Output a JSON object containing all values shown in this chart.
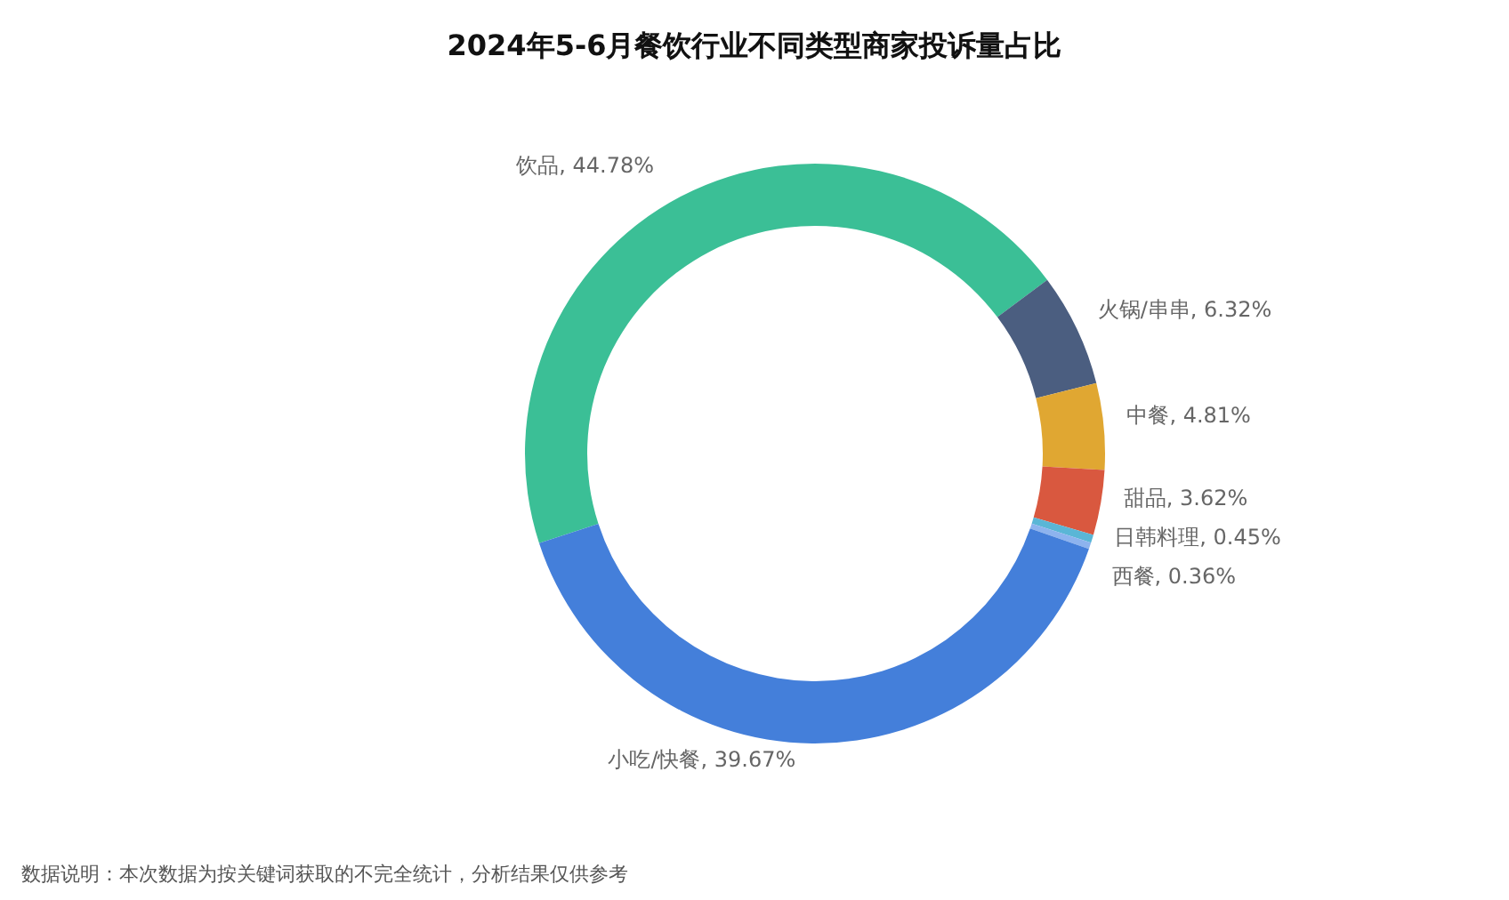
{
  "chart_data": {
    "type": "donut",
    "title": "2024年5-6月餐饮行业不同类型商家投诉量占比",
    "categories": [
      "饮品",
      "火锅/串串",
      "中餐",
      "甜品",
      "日韩料理",
      "西餐",
      "小吃/快餐"
    ],
    "values": [
      44.78,
      6.32,
      4.81,
      3.62,
      0.45,
      0.36,
      39.67
    ],
    "value_labels": [
      "44.78%",
      "6.32%",
      "4.81%",
      "3.62%",
      "0.45%",
      "0.36%",
      "39.67%"
    ],
    "colors": [
      "#3bbf96",
      "#4b5e80",
      "#e0a732",
      "#d9583f",
      "#5ab6d6",
      "#8db3ee",
      "#447fda"
    ],
    "annotations": [
      "数据说明：本次数据为按关键词获取的不完全统计，分析结果仅供参考"
    ]
  }
}
